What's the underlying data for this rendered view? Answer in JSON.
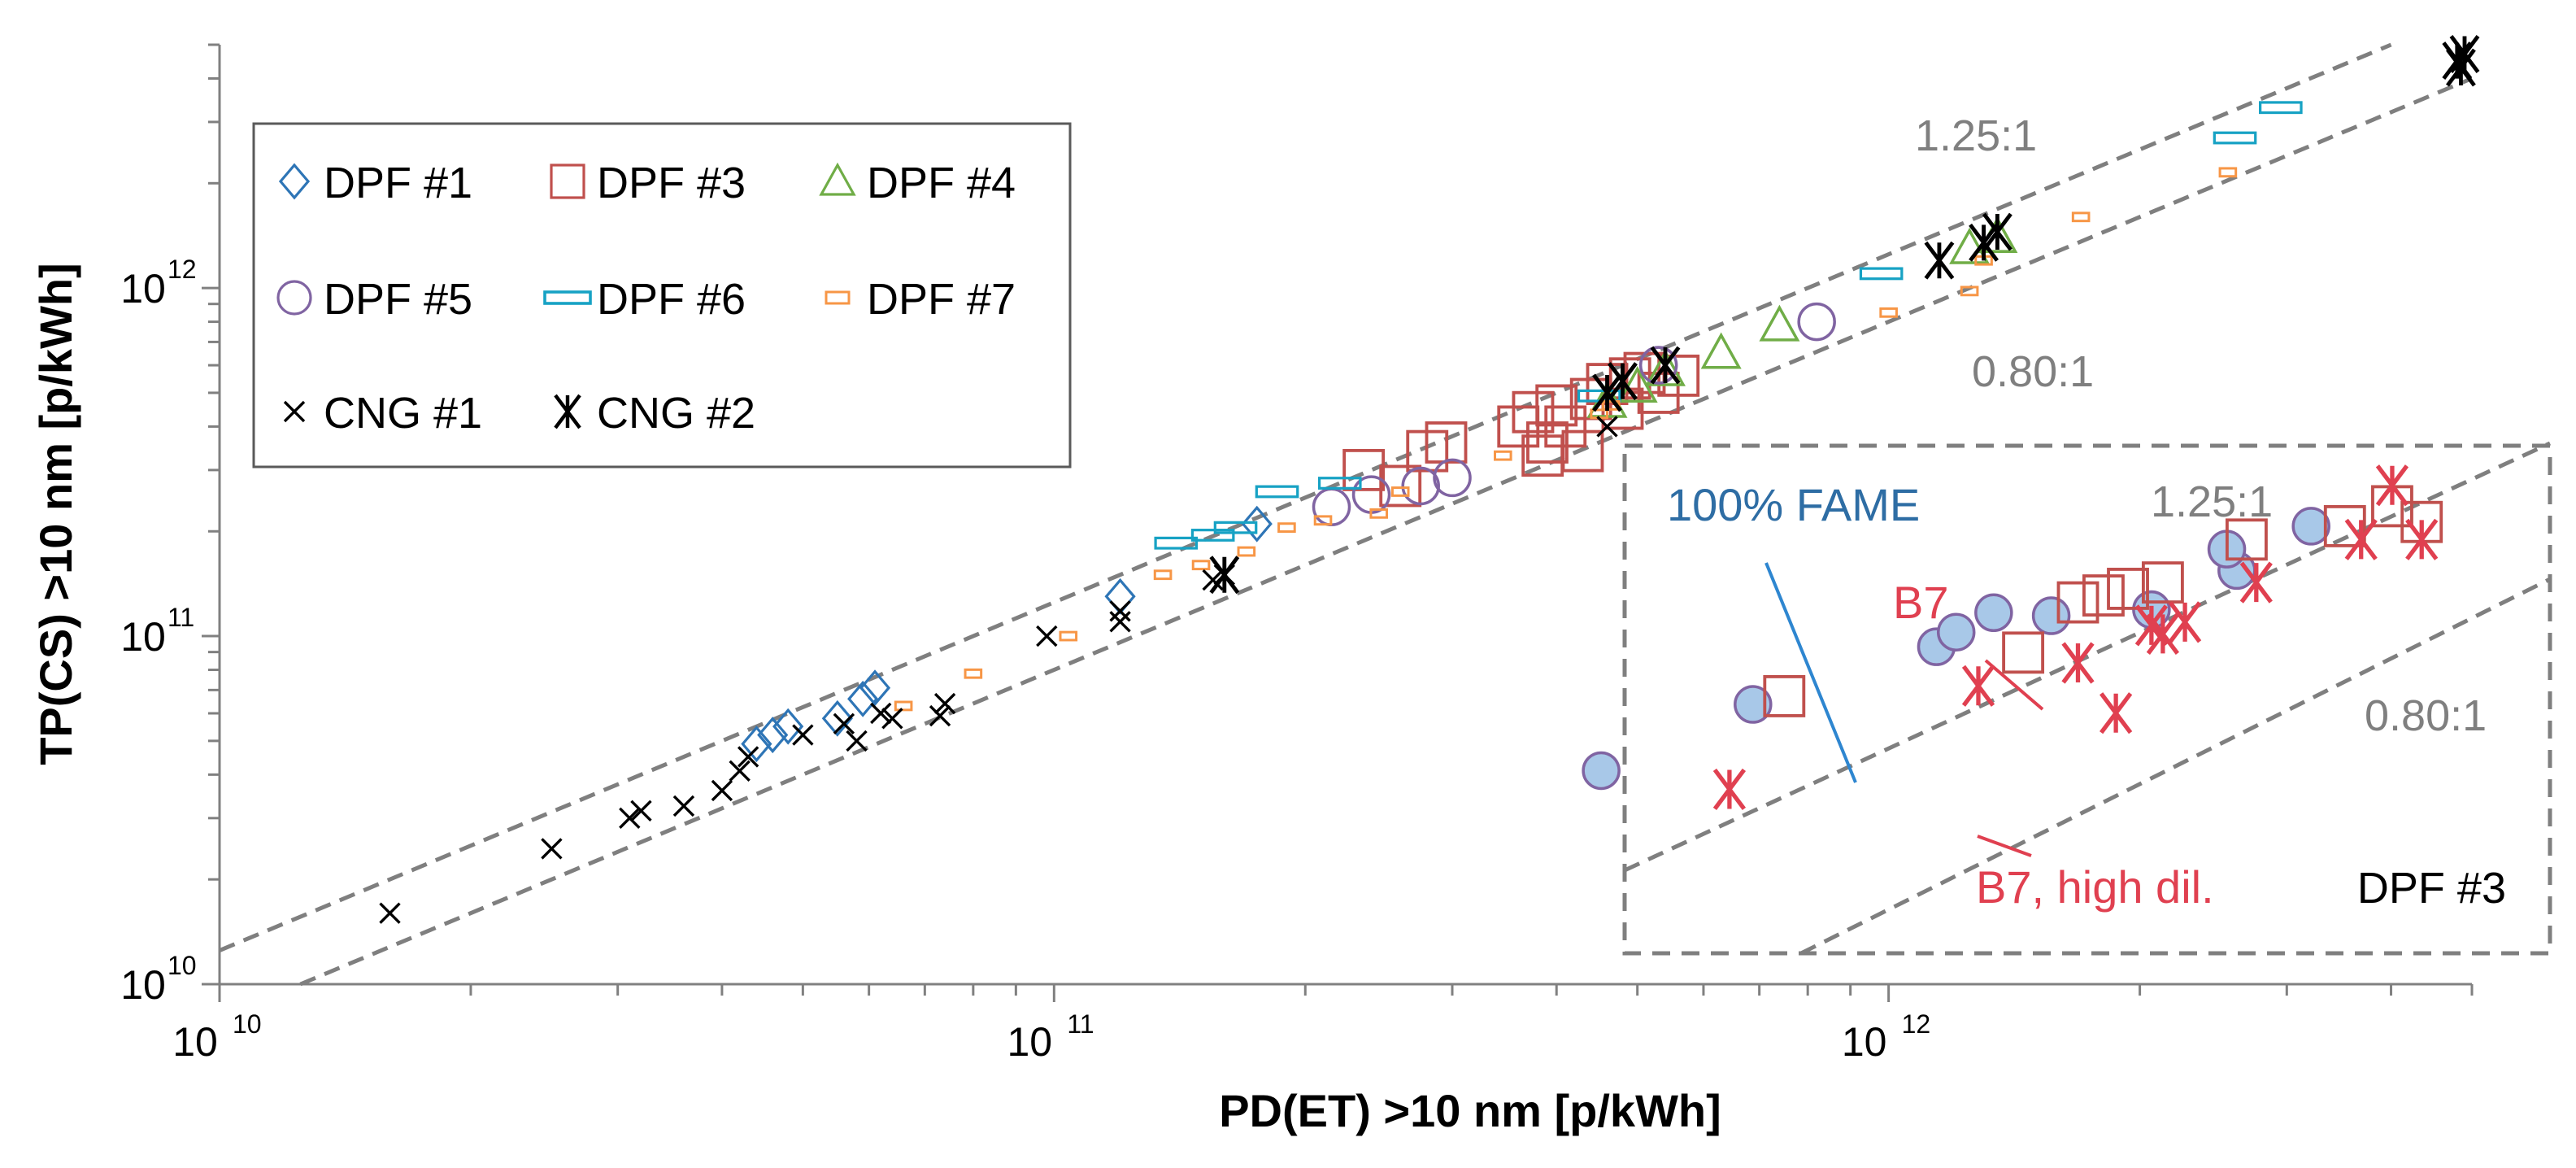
{
  "chart_data": {
    "type": "scatter",
    "xscale": "log",
    "yscale": "log",
    "xlabel": "PD(ET) >10 nm [p/kWh]",
    "ylabel": "TP(CS) >10 nm [p/kWh]",
    "xlim": [
      10000000000.0,
      5000000000000.0
    ],
    "ylim": [
      10000000000.0,
      5000000000000.0
    ],
    "x_ticks": [
      {
        "mant": "10",
        "exp": "10",
        "value": 10000000000.0
      },
      {
        "mant": "10",
        "exp": "11",
        "value": 100000000000.0
      },
      {
        "mant": "10",
        "exp": "12",
        "value": 1000000000000.0
      }
    ],
    "y_ticks": [
      {
        "mant": "10",
        "exp": "10",
        "value": 10000000000.0
      },
      {
        "mant": "10",
        "exp": "11",
        "value": 100000000000.0
      },
      {
        "mant": "10",
        "exp": "12",
        "value": 1000000000000.0
      }
    ],
    "ref_lines": [
      {
        "label": "1.25:1",
        "ratio": 1.25
      },
      {
        "label": "0.80:1",
        "ratio": 0.8
      }
    ],
    "colors": {
      "dpf1": "#2e75b6",
      "dpf3": "#c0504d",
      "dpf4": "#70ad47",
      "dpf5": "#8064a2",
      "dpf6": "#17a2c4",
      "dpf7": "#f79646",
      "cng": "#000000",
      "grid": "#7f7f7f",
      "inset_fill": "#a8c8e8",
      "inset_red": "#e04050",
      "fame_line": "#2e86d0",
      "fame_text": "#2e6da4"
    },
    "series": [
      {
        "name": "DPF #1",
        "marker": "diamond",
        "color": "#2e75b6",
        "points": [
          [
            44000000000.0,
            49000000000.0
          ],
          [
            46000000000.0,
            52000000000.0
          ],
          [
            48000000000.0,
            55000000000.0
          ],
          [
            55000000000.0,
            58000000000.0
          ],
          [
            59000000000.0,
            66000000000.0
          ],
          [
            61000000000.0,
            71000000000.0
          ],
          [
            120000000000.0,
            130000000000.0
          ],
          [
            175000000000.0,
            210000000000.0
          ]
        ]
      },
      {
        "name": "DPF #3",
        "marker": "square",
        "color": "#c0504d",
        "points": [
          [
            235000000000.0,
            300000000000.0
          ],
          [
            260000000000.0,
            270000000000.0
          ],
          [
            280000000000.0,
            340000000000.0
          ],
          [
            295000000000.0,
            360000000000.0
          ],
          [
            360000000000.0,
            400000000000.0
          ],
          [
            375000000000.0,
            440000000000.0
          ],
          [
            385000000000.0,
            330000000000.0
          ],
          [
            390000000000.0,
            360000000000.0
          ],
          [
            400000000000.0,
            460000000000.0
          ],
          [
            410000000000.0,
            400000000000.0
          ],
          [
            430000000000.0,
            340000000000.0
          ],
          [
            440000000000.0,
            480000000000.0
          ],
          [
            460000000000.0,
            530000000000.0
          ],
          [
            480000000000.0,
            450000000000.0
          ],
          [
            490000000000.0,
            550000000000.0
          ],
          [
            510000000000.0,
            570000000000.0
          ],
          [
            530000000000.0,
            500000000000.0
          ],
          [
            560000000000.0,
            560000000000.0
          ]
        ]
      },
      {
        "name": "DPF #4",
        "marker": "triangle",
        "color": "#70ad47",
        "points": [
          [
            460000000000.0,
            470000000000.0
          ],
          [
            500000000000.0,
            520000000000.0
          ],
          [
            540000000000.0,
            580000000000.0
          ],
          [
            630000000000.0,
            650000000000.0
          ],
          [
            740000000000.0,
            780000000000.0
          ],
          [
            1250000000000.0,
            1300000000000.0
          ],
          [
            1350000000000.0,
            1400000000000.0
          ]
        ]
      },
      {
        "name": "DPF #5",
        "marker": "circle",
        "color": "#8064a2",
        "points": [
          [
            215000000000.0,
            235000000000.0
          ],
          [
            240000000000.0,
            255000000000.0
          ],
          [
            275000000000.0,
            270000000000.0
          ],
          [
            300000000000.0,
            285000000000.0
          ],
          [
            530000000000.0,
            600000000000.0
          ],
          [
            820000000000.0,
            800000000000.0
          ]
        ]
      },
      {
        "name": "DPF #6",
        "marker": "dash",
        "color": "#17a2c4",
        "points": [
          [
            140000000000.0,
            185000000000.0
          ],
          [
            155000000000.0,
            195000000000.0
          ],
          [
            165000000000.0,
            205000000000.0
          ],
          [
            185000000000.0,
            260000000000.0
          ],
          [
            220000000000.0,
            275000000000.0
          ],
          [
            450000000000.0,
            490000000000.0
          ],
          [
            980000000000.0,
            1100000000000.0
          ],
          [
            2600000000000.0,
            2700000000000.0
          ],
          [
            2950000000000.0,
            3300000000000.0
          ]
        ]
      },
      {
        "name": "DPF #7",
        "marker": "smallrect",
        "color": "#f79646",
        "points": [
          [
            66000000000.0,
            63000000000.0
          ],
          [
            80000000000.0,
            78000000000.0
          ],
          [
            104000000000.0,
            100000000000.0
          ],
          [
            135000000000.0,
            150000000000.0
          ],
          [
            150000000000.0,
            160000000000.0
          ],
          [
            170000000000.0,
            175000000000.0
          ],
          [
            190000000000.0,
            205000000000.0
          ],
          [
            210000000000.0,
            215000000000.0
          ],
          [
            245000000000.0,
            225000000000.0
          ],
          [
            260000000000.0,
            260000000000.0
          ],
          [
            345000000000.0,
            330000000000.0
          ],
          [
            450000000000.0,
            435000000000.0
          ],
          [
            465000000000.0,
            460000000000.0
          ],
          [
            1000000000000.0,
            850000000000.0
          ],
          [
            1250000000000.0,
            980000000000.0
          ],
          [
            1300000000000.0,
            1200000000000.0
          ],
          [
            1700000000000.0,
            1600000000000.0
          ],
          [
            2550000000000.0,
            2150000000000.0
          ]
        ]
      },
      {
        "name": "CNG #1",
        "marker": "x",
        "color": "#000000",
        "points": [
          [
            16000000000.0,
            16000000000.0
          ],
          [
            25000000000.0,
            24500000000.0
          ],
          [
            31000000000.0,
            30000000000.0
          ],
          [
            32000000000.0,
            31500000000.0
          ],
          [
            36000000000.0,
            32500000000.0
          ],
          [
            40000000000.0,
            36000000000.0
          ],
          [
            42000000000.0,
            41000000000.0
          ],
          [
            43000000000.0,
            45000000000.0
          ],
          [
            50000000000.0,
            52000000000.0
          ],
          [
            56000000000.0,
            56000000000.0
          ],
          [
            58000000000.0,
            50000000000.0
          ],
          [
            62000000000.0,
            60000000000.0
          ],
          [
            64000000000.0,
            58000000000.0
          ],
          [
            73000000000.0,
            59000000000.0
          ],
          [
            74000000000.0,
            64000000000.0
          ],
          [
            98000000000.0,
            100000000000.0
          ],
          [
            120000000000.0,
            110000000000.0
          ],
          [
            120000000000.0,
            118000000000.0
          ],
          [
            155000000000.0,
            145000000000.0
          ],
          [
            160000000000.0,
            150000000000.0
          ],
          [
            460000000000.0,
            400000000000.0
          ]
        ]
      },
      {
        "name": "CNG #2",
        "marker": "asterisk",
        "color": "#000000",
        "points": [
          [
            160000000000.0,
            150000000000.0
          ],
          [
            460000000000.0,
            500000000000.0
          ],
          [
            480000000000.0,
            540000000000.0
          ],
          [
            540000000000.0,
            600000000000.0
          ],
          [
            1150000000000.0,
            1200000000000.0
          ],
          [
            1300000000000.0,
            1350000000000.0
          ],
          [
            1350000000000.0,
            1450000000000.0
          ],
          [
            4800000000000.0,
            4500000000000.0
          ],
          [
            4900000000000.0,
            4700000000000.0
          ],
          [
            4850000000000.0,
            4300000000000.0
          ]
        ]
      }
    ],
    "legend": {
      "placement": "top-left",
      "entries": [
        {
          "label": "DPF #1",
          "marker": "diamond",
          "color": "#2e75b6"
        },
        {
          "label": "DPF #3",
          "marker": "square",
          "color": "#c0504d"
        },
        {
          "label": "DPF #4",
          "marker": "triangle",
          "color": "#70ad47"
        },
        {
          "label": "DPF #5",
          "marker": "circle",
          "color": "#8064a2"
        },
        {
          "label": "DPF #6",
          "marker": "dash",
          "color": "#17a2c4"
        },
        {
          "label": "DPF #7",
          "marker": "smallrect",
          "color": "#f79646"
        },
        {
          "label": "CNG #1",
          "marker": "x",
          "color": "#000000"
        },
        {
          "label": "CNG #2",
          "marker": "asterisk",
          "color": "#000000"
        }
      ]
    },
    "inset": {
      "title": "DPF #3",
      "placement": "bottom-right",
      "xlim": [
        1000000000000.0,
        5000000000000.0
      ],
      "ylim": [
        10000000000.0,
        300000000000.0
      ],
      "ref_lines": [
        {
          "label": "1.25:1",
          "ratio": 1.25
        },
        {
          "label": "0.80:1",
          "ratio": 0.8
        }
      ],
      "annotations": [
        {
          "text": "100% FAME",
          "points_to": [
            960000000000.0,
            34000000000.0
          ]
        },
        {
          "text": "B7",
          "points_to": [
            1300000000000.0,
            56000000000.0
          ]
        },
        {
          "text": "B7, high dil.",
          "points_to": [
            1200000000000.0,
            30000000000.0
          ]
        }
      ],
      "series": [
        {
          "name": "100% FAME",
          "marker": "filled-circle",
          "color": "#8064a2",
          "points": [
            [
              960000000000.0,
              34000000000.0
            ],
            [
              1250000000000.0,
              53000000000.0
            ],
            [
              1720000000000.0,
              78000000000.0
            ],
            [
              1780000000000.0,
              86000000000.0
            ],
            [
              1900000000000.0,
              98000000000.0
            ],
            [
              2100000000000.0,
              96000000000.0
            ],
            [
              2500000000000.0,
              100000000000.0
            ],
            [
              2900000000000.0,
              130000000000.0
            ],
            [
              2850000000000.0,
              150000000000.0
            ],
            [
              3300000000000.0,
              175000000000.0
            ]
          ]
        },
        {
          "name": "B7",
          "marker": "square",
          "color": "#c0504d",
          "points": [
            [
              1320000000000.0,
              56000000000.0
            ],
            [
              2000000000000.0,
              75000000000.0
            ],
            [
              2200000000000.0,
              105000000000.0
            ],
            [
              2300000000000.0,
              110000000000.0
            ],
            [
              2400000000000.0,
              115000000000.0
            ],
            [
              2550000000000.0,
              120000000000.0
            ],
            [
              2950000000000.0,
              160000000000.0
            ],
            [
              3500000000000.0,
              175000000000.0
            ],
            [
              3800000000000.0,
              200000000000.0
            ],
            [
              4000000000000.0,
              180000000000.0
            ]
          ]
        },
        {
          "name": "B7, high dil.",
          "marker": "asterisk",
          "color": "#e04050",
          "points": [
            [
              1200000000000.0,
              30000000000.0
            ],
            [
              1850000000000.0,
              60000000000.0
            ],
            [
              2200000000000.0,
              70000000000.0
            ],
            [
              2350000000000.0,
              50000000000.0
            ],
            [
              2500000000000.0,
              90000000000.0
            ],
            [
              2550000000000.0,
              85000000000.0
            ],
            [
              2650000000000.0,
              92000000000.0
            ],
            [
              3000000000000.0,
              120000000000.0
            ],
            [
              3600000000000.0,
              160000000000.0
            ],
            [
              3800000000000.0,
              230000000000.0
            ],
            [
              4000000000000.0,
              160000000000.0
            ]
          ]
        }
      ]
    }
  }
}
